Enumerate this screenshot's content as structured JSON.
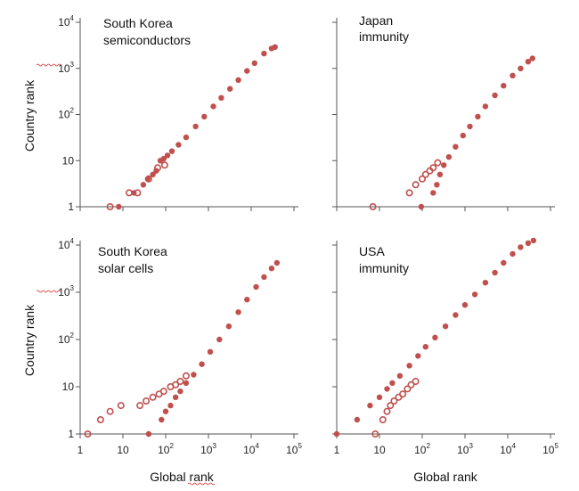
{
  "chart_data": [
    {
      "type": "scatter",
      "title_lines": [
        "South Korea",
        "semiconductors"
      ],
      "xlabel": "",
      "ylabel": "Country rank",
      "xscale": "log",
      "yscale": "log",
      "xlim": [
        1,
        100000
      ],
      "ylim": [
        1,
        10000
      ],
      "yticks": [
        "1",
        "10",
        "10^2",
        "10^3",
        "10^4"
      ],
      "xticks": [],
      "series": [
        {
          "name": "filled",
          "marker": "filled-circle",
          "color": "#c0504d",
          "points": [
            [
              8,
              1
            ],
            [
              18,
              2
            ],
            [
              30,
              3
            ],
            [
              38,
              4
            ],
            [
              50,
              5
            ],
            [
              60,
              6
            ],
            [
              75,
              10
            ],
            [
              90,
              11
            ],
            [
              110,
              13
            ],
            [
              140,
              16
            ],
            [
              200,
              22
            ],
            [
              300,
              32
            ],
            [
              500,
              55
            ],
            [
              800,
              90
            ],
            [
              1300,
              150
            ],
            [
              2000,
              230
            ],
            [
              3200,
              360
            ],
            [
              5000,
              560
            ],
            [
              8000,
              880
            ],
            [
              12000,
              1300
            ],
            [
              20000,
              2100
            ],
            [
              30000,
              2700
            ],
            [
              36000,
              2900
            ]
          ]
        },
        {
          "name": "open",
          "marker": "open-circle",
          "color": "#c0504d",
          "points": [
            [
              5,
              1
            ],
            [
              14,
              2
            ],
            [
              22,
              2
            ],
            [
              40,
              4
            ],
            [
              65,
              7
            ],
            [
              95,
              8
            ]
          ]
        }
      ]
    },
    {
      "type": "scatter",
      "title_lines": [
        "Japan",
        "immunity"
      ],
      "xlabel": "",
      "ylabel": "",
      "xscale": "log",
      "yscale": "log",
      "xlim": [
        1,
        100000
      ],
      "ylim": [
        1,
        10000
      ],
      "yticks": [],
      "xticks": [],
      "series": [
        {
          "name": "filled",
          "marker": "filled-circle",
          "color": "#c0504d",
          "points": [
            [
              95,
              1
            ],
            [
              180,
              2
            ],
            [
              220,
              3
            ],
            [
              260,
              5
            ],
            [
              320,
              8
            ],
            [
              420,
              12
            ],
            [
              600,
              20
            ],
            [
              900,
              35
            ],
            [
              1300,
              55
            ],
            [
              2000,
              90
            ],
            [
              3000,
              150
            ],
            [
              5000,
              260
            ],
            [
              8000,
              420
            ],
            [
              13000,
              700
            ],
            [
              20000,
              1000
            ],
            [
              30000,
              1400
            ],
            [
              38000,
              1650
            ]
          ]
        },
        {
          "name": "open",
          "marker": "open-circle",
          "color": "#c0504d",
          "points": [
            [
              7,
              1
            ],
            [
              50,
              2
            ],
            [
              70,
              3
            ],
            [
              100,
              4
            ],
            [
              120,
              5
            ],
            [
              150,
              6
            ],
            [
              180,
              7
            ],
            [
              230,
              9
            ]
          ]
        }
      ]
    },
    {
      "type": "scatter",
      "title_lines": [
        "South Korea",
        "solar cells"
      ],
      "xlabel": "Global rank",
      "ylabel": "Country rank",
      "xscale": "log",
      "yscale": "log",
      "xlim": [
        1,
        100000
      ],
      "ylim": [
        1,
        10000
      ],
      "yticks": [
        "1",
        "10",
        "10^2",
        "10^3",
        "10^4"
      ],
      "xticks": [
        "1",
        "10",
        "10^2",
        "10^3",
        "10^4",
        "10^5"
      ],
      "series": [
        {
          "name": "filled",
          "marker": "filled-circle",
          "color": "#c0504d",
          "points": [
            [
              40,
              1
            ],
            [
              80,
              2
            ],
            [
              100,
              3
            ],
            [
              130,
              4
            ],
            [
              170,
              6
            ],
            [
              220,
              8
            ],
            [
              300,
              12
            ],
            [
              450,
              18
            ],
            [
              700,
              30
            ],
            [
              1100,
              55
            ],
            [
              1800,
              100
            ],
            [
              3000,
              190
            ],
            [
              5000,
              380
            ],
            [
              8000,
              700
            ],
            [
              13000,
              1300
            ],
            [
              20000,
              2100
            ],
            [
              30000,
              3200
            ],
            [
              40000,
              4200
            ]
          ]
        },
        {
          "name": "open",
          "marker": "open-circle",
          "color": "#c0504d",
          "points": [
            [
              1.5,
              1
            ],
            [
              3,
              2
            ],
            [
              5,
              3
            ],
            [
              9,
              4
            ],
            [
              25,
              4
            ],
            [
              35,
              5
            ],
            [
              50,
              6
            ],
            [
              70,
              7
            ],
            [
              90,
              8
            ],
            [
              130,
              10
            ],
            [
              170,
              11
            ],
            [
              220,
              13
            ],
            [
              300,
              17
            ]
          ]
        }
      ]
    },
    {
      "type": "scatter",
      "title_lines": [
        "USA",
        "immunity"
      ],
      "xlabel": "Global rank",
      "ylabel": "",
      "xscale": "log",
      "yscale": "log",
      "xlim": [
        1,
        100000
      ],
      "ylim": [
        1,
        10000
      ],
      "yticks": [],
      "xticks": [
        "1",
        "10",
        "10^2",
        "10^3",
        "10^4",
        "10^5"
      ],
      "series": [
        {
          "name": "filled",
          "marker": "filled-circle",
          "color": "#c0504d",
          "points": [
            [
              1,
              1
            ],
            [
              3,
              2
            ],
            [
              6,
              4
            ],
            [
              10,
              6
            ],
            [
              15,
              9
            ],
            [
              20,
              12
            ],
            [
              30,
              17
            ],
            [
              50,
              28
            ],
            [
              80,
              45
            ],
            [
              120,
              70
            ],
            [
              200,
              110
            ],
            [
              350,
              190
            ],
            [
              600,
              330
            ],
            [
              1000,
              540
            ],
            [
              1700,
              900
            ],
            [
              3000,
              1600
            ],
            [
              5000,
              2600
            ],
            [
              8000,
              4200
            ],
            [
              13000,
              6500
            ],
            [
              20000,
              9000
            ],
            [
              30000,
              11000
            ],
            [
              40000,
              12500
            ]
          ]
        },
        {
          "name": "open",
          "marker": "open-circle",
          "color": "#c0504d",
          "points": [
            [
              8,
              1
            ],
            [
              12,
              2
            ],
            [
              15,
              3
            ],
            [
              18,
              4
            ],
            [
              22,
              5
            ],
            [
              28,
              6
            ],
            [
              35,
              7
            ],
            [
              45,
              9
            ],
            [
              55,
              11
            ],
            [
              70,
              13
            ]
          ]
        }
      ]
    }
  ],
  "labels": {
    "y_axis": "Country rank",
    "x_axis": "Global rank"
  }
}
